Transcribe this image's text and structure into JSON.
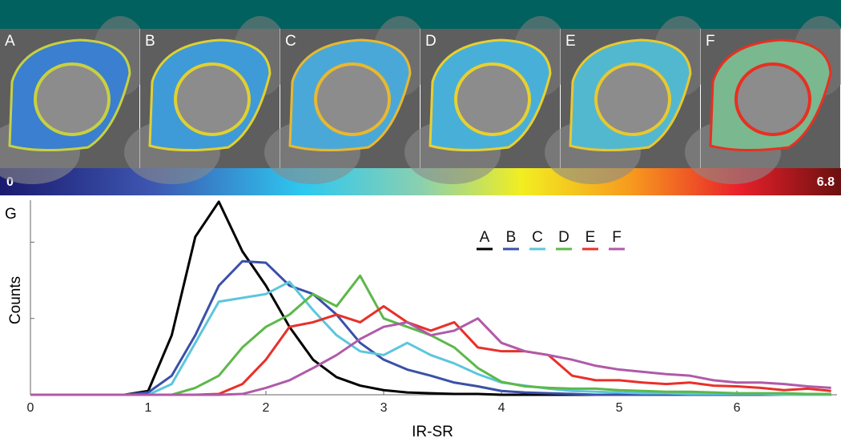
{
  "panels": [
    {
      "label": "A"
    },
    {
      "label": "B"
    },
    {
      "label": "C"
    },
    {
      "label": "D"
    },
    {
      "label": "E"
    },
    {
      "label": "F"
    }
  ],
  "colorbar": {
    "min": 0,
    "max": 6.8
  },
  "chart_data": {
    "type": "line",
    "panel_label": "G",
    "x_label": "IR-SR",
    "y_label": "Counts",
    "x": [
      0,
      0.8,
      1.0,
      1.2,
      1.4,
      1.6,
      1.8,
      2.0,
      2.2,
      2.4,
      2.6,
      2.8,
      3.0,
      3.2,
      3.4,
      3.6,
      3.8,
      4.0,
      4.2,
      4.4,
      4.6,
      4.8,
      5.0,
      5.2,
      5.4,
      5.6,
      5.8,
      6.0,
      6.2,
      6.4,
      6.6,
      6.8
    ],
    "series": [
      {
        "name": "A",
        "color": "#000000",
        "values": [
          0,
          0,
          5,
          78,
          207,
          253,
          188,
          143,
          89,
          46,
          23,
          12,
          6,
          3,
          2,
          1,
          1,
          0,
          0,
          0,
          0,
          0,
          0,
          0,
          0,
          0,
          0,
          0,
          0,
          0,
          0,
          0
        ]
      },
      {
        "name": "B",
        "color": "#3a50a8",
        "values": [
          0,
          0,
          3,
          25,
          78,
          143,
          175,
          173,
          143,
          132,
          105,
          68,
          46,
          33,
          25,
          16,
          11,
          5,
          3,
          2,
          1,
          0,
          0,
          0,
          0,
          0,
          0,
          0,
          0,
          0,
          0,
          0
        ]
      },
      {
        "name": "C",
        "color": "#5cc6dc",
        "values": [
          0,
          0,
          0,
          14,
          68,
          122,
          127,
          132,
          148,
          111,
          78,
          57,
          52,
          68,
          52,
          41,
          27,
          16,
          12,
          8,
          5,
          4,
          3,
          2,
          2,
          1,
          1,
          1,
          1,
          0,
          0,
          0
        ]
      },
      {
        "name": "D",
        "color": "#5cb84a",
        "values": [
          0,
          0,
          0,
          0,
          9,
          25,
          62,
          89,
          105,
          132,
          116,
          156,
          100,
          89,
          78,
          62,
          35,
          17,
          11,
          9,
          8,
          8,
          6,
          5,
          4,
          4,
          3,
          2,
          2,
          2,
          1,
          1
        ]
      },
      {
        "name": "E",
        "color": "#e8302a",
        "values": [
          0,
          0,
          0,
          0,
          0,
          1,
          14,
          46,
          89,
          95,
          105,
          95,
          116,
          95,
          84,
          95,
          62,
          57,
          57,
          52,
          25,
          19,
          19,
          16,
          14,
          16,
          12,
          11,
          9,
          6,
          8,
          5
        ]
      },
      {
        "name": "F",
        "color": "#b05aa8",
        "values": [
          0,
          0,
          0,
          0,
          0,
          0,
          1,
          9,
          19,
          35,
          52,
          73,
          89,
          95,
          78,
          84,
          100,
          68,
          57,
          52,
          46,
          38,
          33,
          30,
          27,
          25,
          19,
          16,
          16,
          14,
          11,
          9
        ]
      }
    ],
    "xlim": [
      0,
      6.85
    ],
    "xticks": [
      0,
      1,
      2,
      3,
      4,
      5,
      6
    ],
    "ylim": [
      0,
      255
    ],
    "yticks": [
      100,
      200
    ]
  }
}
